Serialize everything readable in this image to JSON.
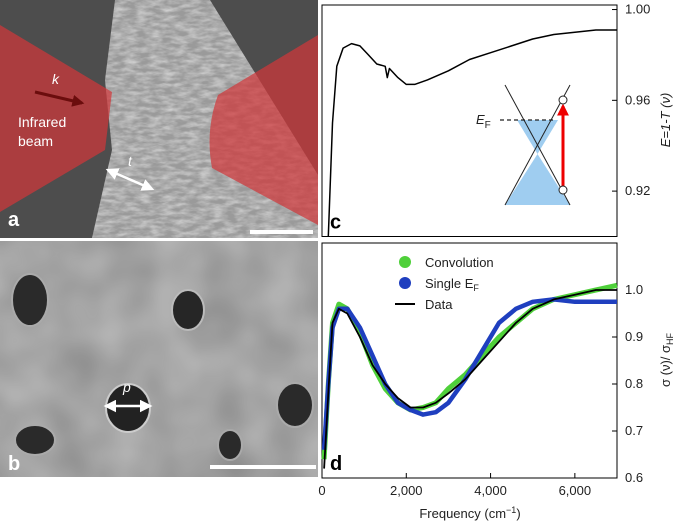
{
  "panels": {
    "a": {
      "label": "a",
      "k": "k",
      "beam_line1": "Infrared",
      "beam_line2": "beam",
      "t": "t"
    },
    "b": {
      "label": "b",
      "p": "p"
    }
  },
  "chart_data": [
    {
      "type": "line",
      "panel_label": "c",
      "x": [
        150,
        250,
        350,
        500,
        700,
        900,
        1100,
        1300,
        1500,
        1550,
        1600,
        1800,
        2000,
        2200,
        2500,
        3000,
        3500,
        4000,
        4500,
        5000,
        5500,
        6000,
        6500,
        7000
      ],
      "series": [
        {
          "color": "#000000",
          "values": [
            0.9,
            0.95,
            0.975,
            0.983,
            0.985,
            0.984,
            0.98,
            0.976,
            0.975,
            0.97,
            0.974,
            0.97,
            0.967,
            0.967,
            0.969,
            0.973,
            0.978,
            0.981,
            0.984,
            0.987,
            0.989,
            0.99,
            0.991,
            0.991
          ]
        }
      ],
      "xlim": [
        0,
        7000
      ],
      "ylim": [
        0.9,
        1.002
      ],
      "yticks": [
        0.92,
        0.96,
        {
          "value": 1.0,
          "label": "1.00"
        }
      ],
      "ylabel": {
        "main": "E=1-T (ν)"
      },
      "inset": {
        "fermi_label": "E",
        "fermi_sub": "F"
      }
    },
    {
      "type": "line",
      "panel_label": "d",
      "x": [
        50,
        150,
        250,
        400,
        600,
        900,
        1200,
        1500,
        1800,
        2100,
        2400,
        2700,
        3000,
        3400,
        3800,
        4200,
        4600,
        5000,
        5500,
        6000,
        6500,
        7000
      ],
      "series": [
        {
          "name": "Convolution",
          "color": "#4fd03a",
          "style": "line",
          "values": [
            0.64,
            0.8,
            0.93,
            0.97,
            0.96,
            0.91,
            0.84,
            0.79,
            0.76,
            0.745,
            0.75,
            0.76,
            0.79,
            0.82,
            0.86,
            0.9,
            0.93,
            0.96,
            0.98,
            0.99,
            1.0,
            1.01
          ]
        },
        {
          "name": "Single E",
          "name_sub": "F",
          "color": "#1f3fbf",
          "style": "thick",
          "values": [
            0.66,
            0.8,
            0.92,
            0.96,
            0.96,
            0.92,
            0.86,
            0.8,
            0.76,
            0.745,
            0.735,
            0.74,
            0.76,
            0.81,
            0.87,
            0.93,
            0.96,
            0.975,
            0.98,
            0.975,
            0.975,
            0.975
          ]
        },
        {
          "name": "Data",
          "color": "#000000",
          "style": "thin",
          "values": [
            0.62,
            0.78,
            0.93,
            0.96,
            0.95,
            0.9,
            0.84,
            0.8,
            0.77,
            0.75,
            0.75,
            0.76,
            0.78,
            0.81,
            0.85,
            0.89,
            0.93,
            0.96,
            0.98,
            0.99,
            1.0,
            1.0
          ]
        }
      ],
      "xlim": [
        0,
        7000
      ],
      "ylim": [
        0.6,
        1.1
      ],
      "xticks": [
        0,
        {
          "value": 2000,
          "label": "2,000"
        },
        {
          "value": 4000,
          "label": "4,000"
        },
        {
          "value": 6000,
          "label": "6,000"
        }
      ],
      "yticks": [
        0.6,
        0.7,
        0.8,
        0.9,
        {
          "value": 1.0,
          "label": "1.0"
        }
      ],
      "xlabel": {
        "main": "Frequency (cm",
        "sup": "−1",
        "end": ")"
      },
      "ylabel": {
        "main": "σ (ν)/ σ",
        "sub": "HF"
      }
    }
  ]
}
